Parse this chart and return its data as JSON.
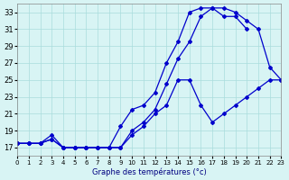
{
  "xlabel": "Graphe des temperatures (°c)",
  "bg_color": "#d8f4f4",
  "grid_color": "#aadddd",
  "line_color": "#0000cc",
  "xlim": [
    0,
    23
  ],
  "ylim": [
    16,
    34
  ],
  "yticks": [
    17,
    19,
    21,
    23,
    25,
    27,
    29,
    31,
    33
  ],
  "xticks": [
    0,
    1,
    2,
    3,
    4,
    5,
    6,
    7,
    8,
    9,
    10,
    11,
    12,
    13,
    14,
    15,
    16,
    17,
    18,
    19,
    20,
    21,
    22,
    23
  ],
  "series1_x": [
    0,
    1,
    2,
    3,
    4,
    5,
    6,
    7,
    8,
    9,
    10,
    11,
    12,
    13,
    14,
    15,
    16,
    17,
    18,
    19,
    20,
    21,
    22,
    23
  ],
  "series1_y": [
    17.5,
    17.5,
    17.5,
    18,
    17,
    17,
    17,
    17,
    17,
    17,
    19,
    20,
    21.5,
    24.5,
    27.5,
    29.5,
    32.5,
    33.5,
    33.5,
    33,
    32,
    31,
    26.5,
    25
  ],
  "series2_x": [
    0,
    1,
    2,
    3,
    4,
    5,
    6,
    7,
    8,
    9,
    10,
    11,
    12,
    13,
    14,
    15,
    16,
    17,
    18,
    19,
    20
  ],
  "series2_y": [
    17.5,
    17.5,
    17.5,
    18.5,
    17,
    17,
    17,
    17,
    17,
    19.5,
    21.5,
    22,
    23.5,
    27,
    29.5,
    33,
    33.5,
    33.5,
    32.5,
    32.5,
    31
  ],
  "series3_x": [
    0,
    1,
    2,
    3,
    4,
    5,
    6,
    7,
    8,
    9,
    10,
    11,
    12,
    13,
    14,
    15,
    16,
    17,
    18,
    19,
    20,
    21,
    22,
    23
  ],
  "series3_y": [
    17.5,
    17.5,
    17.5,
    18,
    17,
    17,
    17,
    17,
    17,
    17,
    18.5,
    19.5,
    21,
    22,
    25,
    25,
    22,
    20,
    21,
    22,
    23,
    24,
    25,
    25
  ]
}
